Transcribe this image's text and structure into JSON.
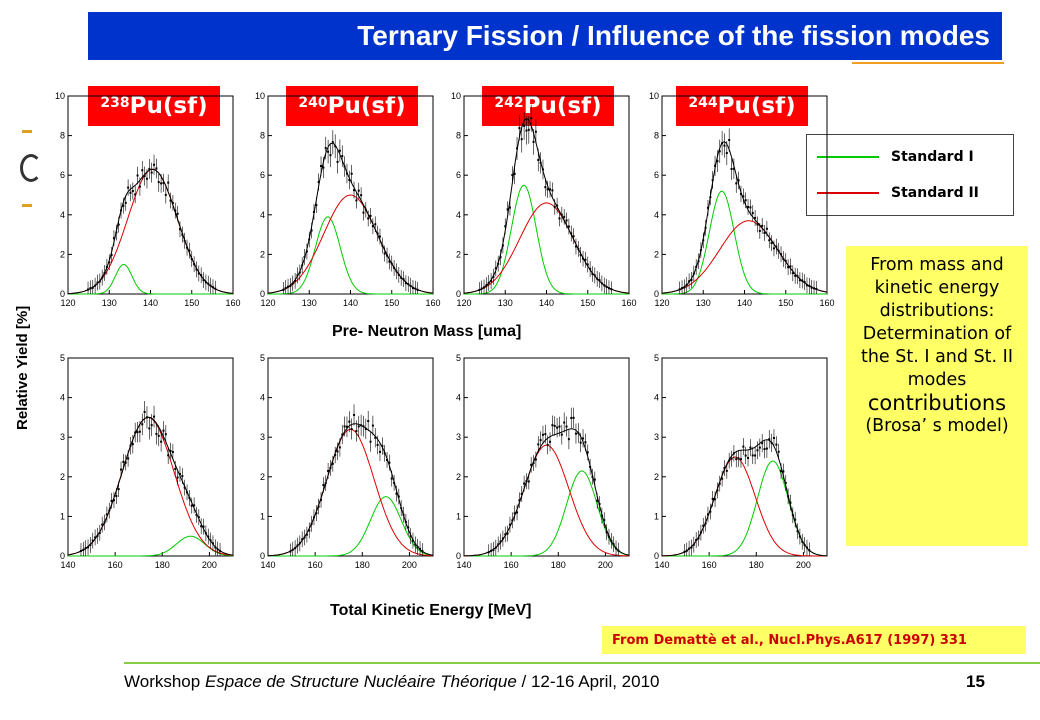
{
  "title": "Ternary Fission / Influence of the fission modes",
  "panel_labels": [
    {
      "sup": "238",
      "text": "Pu(sf)"
    },
    {
      "sup": "240",
      "text": "Pu(sf)"
    },
    {
      "sup": "242",
      "text": "Pu(sf)"
    },
    {
      "sup": "244",
      "text": "Pu(sf)"
    }
  ],
  "legend": {
    "items": [
      {
        "label": "Standard I",
        "color": "#00cc00"
      },
      {
        "label": "Standard II",
        "color": "#dd0000"
      }
    ]
  },
  "note": {
    "line1": "From mass and kinetic energy distributions: Determination of the St. I and St. II modes",
    "line2": "contributions",
    "line3": "(Brosa’ s model)"
  },
  "reference": "From Demattè et al., Nucl.Phys.A617 (1997) 331",
  "axes": {
    "mass_xlabel": "Pre- Neutron Mass [uma]",
    "tke_xlabel": "Total Kinetic Energy [MeV]",
    "ylabel": "Relative Yield [%]"
  },
  "footer": {
    "prefix": "Workshop ",
    "italic": "Espace de Structure Nucléaire Théorique",
    "suffix": " / 12-16 April, 2010",
    "page": "15"
  },
  "colors": {
    "title_bg": "#0033cc",
    "label_bg": "#ff0000",
    "note_bg": "#ffff66",
    "stI": "#00cc00",
    "stII": "#dd0000"
  },
  "chart_data": [
    {
      "type": "line",
      "panel": "238Pu(sf) mass",
      "xlim": [
        120,
        160
      ],
      "ylim": [
        0,
        10
      ],
      "xticks": [
        120,
        130,
        140,
        150,
        160
      ],
      "yticks": [
        0,
        2,
        4,
        6,
        8,
        10
      ],
      "series": [
        {
          "name": "Standard I",
          "peak_x": 133.5,
          "peak_y": 1.5,
          "width": 2.0
        },
        {
          "name": "Standard II",
          "peak_x": 140.5,
          "peak_y": 6.3,
          "width": 6.0
        }
      ]
    },
    {
      "type": "line",
      "panel": "240Pu(sf) mass",
      "xlim": [
        120,
        160
      ],
      "ylim": [
        0,
        10
      ],
      "xticks": [
        120,
        130,
        140,
        150,
        160
      ],
      "yticks": [
        0,
        2,
        4,
        6,
        8,
        10
      ],
      "series": [
        {
          "name": "Standard I",
          "peak_x": 134.5,
          "peak_y": 3.9,
          "width": 3.0
        },
        {
          "name": "Standard II",
          "peak_x": 140,
          "peak_y": 5.0,
          "width": 6.5
        }
      ]
    },
    {
      "type": "line",
      "panel": "242Pu(sf) mass",
      "xlim": [
        120,
        160
      ],
      "ylim": [
        0,
        10
      ],
      "xticks": [
        120,
        130,
        140,
        150,
        160
      ],
      "yticks": [
        0,
        2,
        4,
        6,
        8,
        10
      ],
      "series": [
        {
          "name": "Standard I",
          "peak_x": 134.5,
          "peak_y": 5.5,
          "width": 3.0
        },
        {
          "name": "Standard II",
          "peak_x": 140,
          "peak_y": 4.6,
          "width": 6.5
        }
      ]
    },
    {
      "type": "line",
      "panel": "244Pu(sf) mass",
      "xlim": [
        120,
        160
      ],
      "ylim": [
        0,
        10
      ],
      "xticks": [
        120,
        130,
        140,
        150,
        160
      ],
      "yticks": [
        0,
        2,
        4,
        6,
        8,
        10
      ],
      "series": [
        {
          "name": "Standard I",
          "peak_x": 134.5,
          "peak_y": 5.2,
          "width": 3.0
        },
        {
          "name": "Standard II",
          "peak_x": 141,
          "peak_y": 3.7,
          "width": 7.0
        }
      ]
    },
    {
      "type": "line",
      "panel": "238Pu(sf) TKE",
      "xlim": [
        140,
        210
      ],
      "ylim": [
        0,
        5
      ],
      "xticks": [
        140,
        160,
        180,
        200
      ],
      "yticks": [
        0,
        1,
        2,
        3,
        4,
        5
      ],
      "series": [
        {
          "name": "Standard I",
          "peak_x": 192,
          "peak_y": 0.5,
          "width": 6.0
        },
        {
          "name": "Standard II",
          "peak_x": 174,
          "peak_y": 3.5,
          "width": 11.0
        }
      ]
    },
    {
      "type": "line",
      "panel": "240Pu(sf) TKE",
      "xlim": [
        140,
        210
      ],
      "ylim": [
        0,
        5
      ],
      "xticks": [
        140,
        160,
        180,
        200
      ],
      "yticks": [
        0,
        1,
        2,
        3,
        4,
        5
      ],
      "series": [
        {
          "name": "Standard I",
          "peak_x": 190,
          "peak_y": 1.5,
          "width": 6.5
        },
        {
          "name": "Standard II",
          "peak_x": 175,
          "peak_y": 3.2,
          "width": 10.0
        }
      ]
    },
    {
      "type": "line",
      "panel": "242Pu(sf) TKE",
      "xlim": [
        140,
        210
      ],
      "ylim": [
        0,
        5
      ],
      "xticks": [
        140,
        160,
        180,
        200
      ],
      "yticks": [
        0,
        1,
        2,
        3,
        4,
        5
      ],
      "series": [
        {
          "name": "Standard I",
          "peak_x": 190,
          "peak_y": 2.15,
          "width": 6.5
        },
        {
          "name": "Standard II",
          "peak_x": 175,
          "peak_y": 2.8,
          "width": 9.5
        }
      ]
    },
    {
      "type": "line",
      "panel": "244Pu(sf) TKE",
      "xlim": [
        140,
        210
      ],
      "ylim": [
        0,
        5
      ],
      "xticks": [
        140,
        160,
        180,
        200
      ],
      "yticks": [
        0,
        1,
        2,
        3,
        4,
        5
      ],
      "series": [
        {
          "name": "Standard I",
          "peak_x": 187,
          "peak_y": 2.4,
          "width": 6.5
        },
        {
          "name": "Standard II",
          "peak_x": 171,
          "peak_y": 2.5,
          "width": 8.5
        }
      ]
    }
  ]
}
